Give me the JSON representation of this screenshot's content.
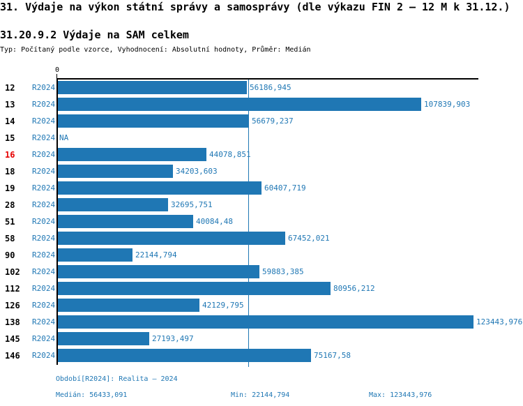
{
  "title": "31. Výdaje na výkon státní správy a samosprávy (dle výkazu FIN 2 – 12 M k 31.12.)",
  "subtitle": "31.20.9.2 Výdaje na SAM celkem",
  "meta": "Typ: Počítaný podle vzorce, Vyhodnocení: Absolutní hodnoty, Průměr: Medián",
  "axis": {
    "zero_label": "0"
  },
  "na_label": "NA",
  "highlighted_category": "16",
  "colors": {
    "bar_blue": "#1f77b4",
    "text_blue": "#1f77b4",
    "highlight_red": "#e60000",
    "axis_black": "#000000",
    "background": "#ffffff"
  },
  "footer": {
    "period_line": "Období[R2024]: Realita – 2024",
    "median_label": "Medián:",
    "min_label": "Min:",
    "max_label": "Max:"
  },
  "chart_data": {
    "type": "bar",
    "orientation": "horizontal",
    "title": "31.20.9.2 Výdaje na SAM celkem",
    "categories": [
      "12",
      "13",
      "14",
      "15",
      "16",
      "18",
      "19",
      "28",
      "51",
      "58",
      "90",
      "102",
      "112",
      "126",
      "138",
      "145",
      "146"
    ],
    "series": [
      {
        "name": "R2024",
        "values": [
          56186.945,
          107839.903,
          56679.237,
          null,
          44078.851,
          34203.603,
          60407.719,
          32695.751,
          40084.48,
          67452.021,
          22144.794,
          59883.385,
          80956.212,
          42129.795,
          123443.976,
          27193.497,
          75167.58
        ]
      }
    ],
    "value_labels": [
      "56186,945",
      "107839,903",
      "56679,237",
      "NA",
      "44078,851",
      "34203,603",
      "60407,719",
      "32695,751",
      "40084,48",
      "67452,021",
      "22144,794",
      "59883,385",
      "80956,212",
      "42129,795",
      "123443,976",
      "27193,497",
      "75167,58"
    ],
    "median": 56433.091,
    "min": 22144.794,
    "max": 123443.976,
    "xlim": [
      0,
      125000
    ],
    "median_line": true,
    "grid": false,
    "legend_position": "none",
    "decimal_separator": ","
  }
}
